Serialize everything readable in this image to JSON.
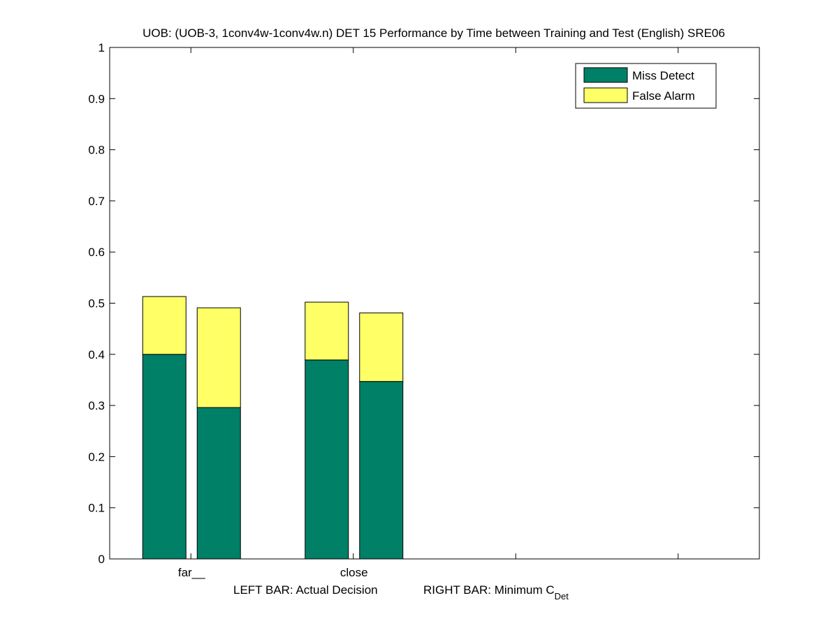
{
  "chart_data": {
    "type": "bar",
    "title": "UOB: (UOB-3, 1conv4w-1conv4w.n) DET 15 Performance by Time between Training and Test (English) SRE06",
    "categories": [
      "far__",
      "close"
    ],
    "x_category_ticks": [
      1,
      2
    ],
    "ylim": [
      0,
      1
    ],
    "yticks": [
      0,
      0.1,
      0.2,
      0.3,
      0.4,
      0.5,
      0.6,
      0.7,
      0.8,
      0.9,
      1
    ],
    "ytick_labels": [
      "0",
      "0.1",
      "0.2",
      "0.3",
      "0.4",
      "0.5",
      "0.6",
      "0.7",
      "0.8",
      "0.9",
      "1"
    ],
    "xlabel": {
      "left_part": "LEFT BAR: Actual Decision",
      "right_part": "RIGHT BAR: Minimum C",
      "right_subscript": "Det"
    },
    "stacked": true,
    "series": [
      {
        "name": "Miss Detect",
        "color": "#008066"
      },
      {
        "name": "False Alarm",
        "color": "#ffff66"
      }
    ],
    "groups": [
      {
        "category": "far__",
        "bars": [
          {
            "kind": "actual",
            "miss": 0.4,
            "false_alarm": 0.113
          },
          {
            "kind": "minimum",
            "miss": 0.296,
            "false_alarm": 0.195
          }
        ]
      },
      {
        "category": "close",
        "bars": [
          {
            "kind": "actual",
            "miss": 0.389,
            "false_alarm": 0.113
          },
          {
            "kind": "minimum",
            "miss": 0.347,
            "false_alarm": 0.134
          }
        ]
      }
    ],
    "legend_position": "top-right",
    "grid": false
  }
}
